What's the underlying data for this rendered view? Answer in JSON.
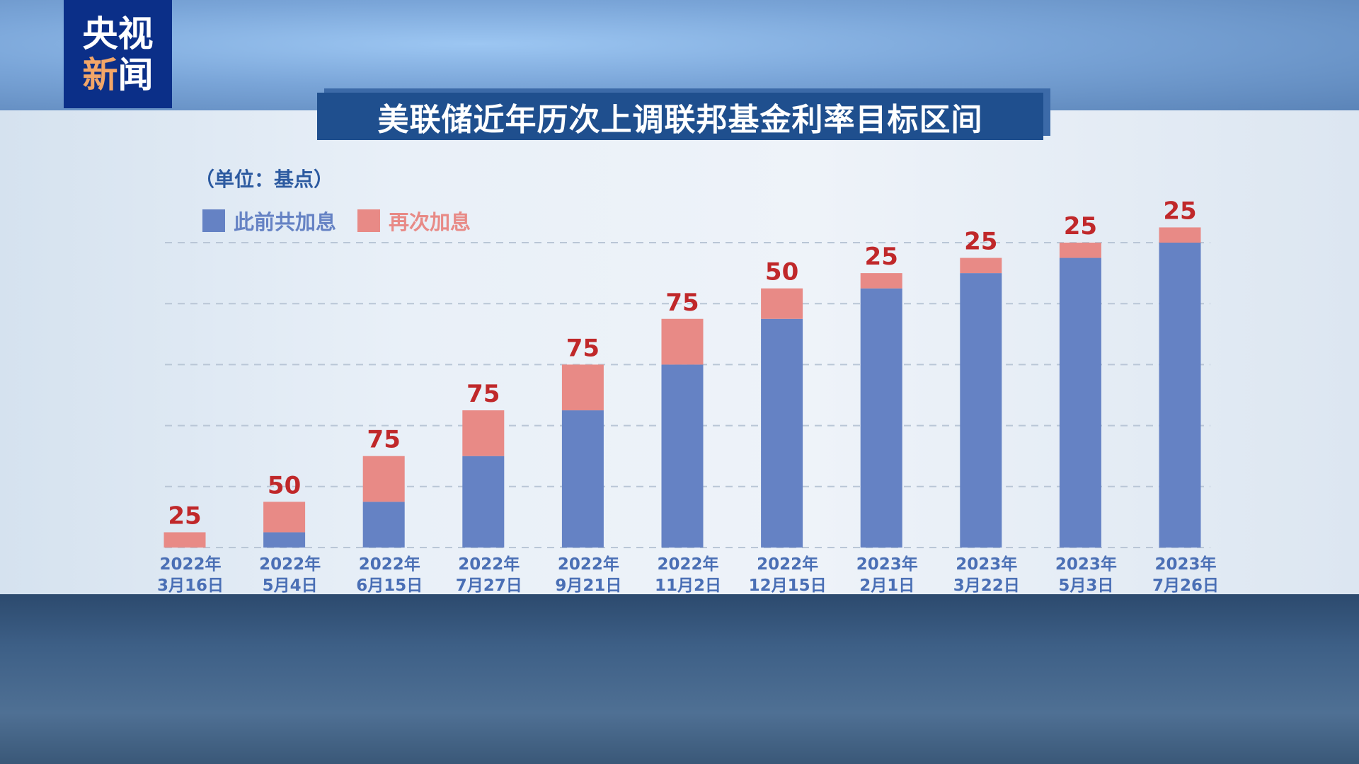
{
  "logo": {
    "line1": "央视",
    "line2a": "新",
    "line2b": "闻"
  },
  "title": "美联储近年历次上调联邦基金利率目标区间",
  "unit": "（单位：基点）",
  "colors": {
    "prior": "#6582c4",
    "increment": "#e88a86",
    "label": "#c0282a",
    "axis_text": "#4a6fb5"
  },
  "chart_data": {
    "type": "bar",
    "stacked": true,
    "categories": [
      [
        "2022年",
        "3月16日"
      ],
      [
        "2022年",
        "5月4日"
      ],
      [
        "2022年",
        "6月15日"
      ],
      [
        "2022年",
        "7月27日"
      ],
      [
        "2022年",
        "9月21日"
      ],
      [
        "2022年",
        "11月2日"
      ],
      [
        "2022年",
        "12月15日"
      ],
      [
        "2023年",
        "2月1日"
      ],
      [
        "2023年",
        "3月22日"
      ],
      [
        "2023年",
        "5月3日"
      ],
      [
        "2023年",
        "7月26日"
      ]
    ],
    "series": [
      {
        "name": "此前共加息",
        "values": [
          0,
          25,
          75,
          150,
          225,
          300,
          375,
          425,
          450,
          475,
          500
        ]
      },
      {
        "name": "再次加息",
        "values": [
          25,
          50,
          75,
          75,
          75,
          75,
          50,
          25,
          25,
          25,
          25
        ]
      }
    ],
    "data_labels": [
      "25",
      "50",
      "75",
      "75",
      "75",
      "75",
      "50",
      "25",
      "25",
      "25",
      "25"
    ],
    "ylim": [
      0,
      500
    ],
    "grid": true,
    "legend": "top-left"
  }
}
